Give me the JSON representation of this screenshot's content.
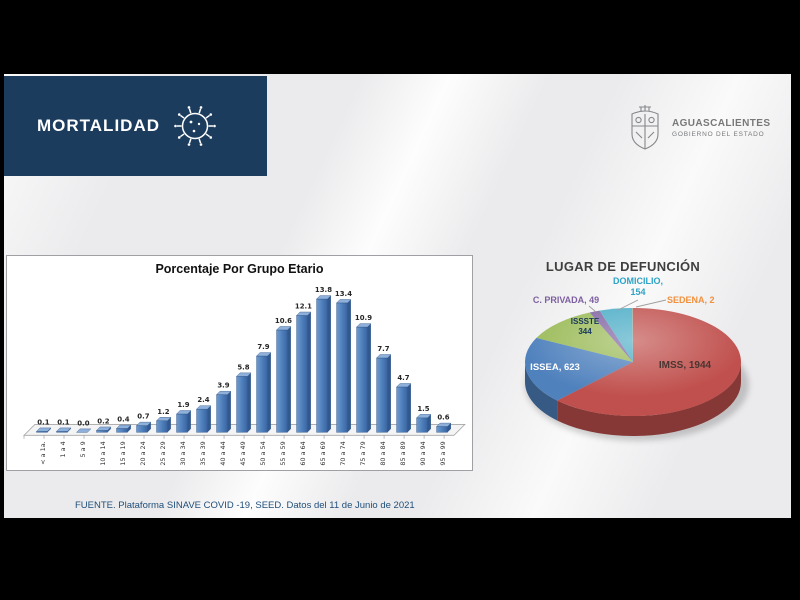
{
  "window": {
    "frame_color": "#000000",
    "slide_background": "#ebebed"
  },
  "header": {
    "title": "MORTALIDAD",
    "band_color": "#1c3c5e"
  },
  "logo": {
    "name": "AGUASCALIENTES",
    "subtitle": "GOBIERNO DEL ESTADO"
  },
  "footer": {
    "source": "FUENTE. Plataforma SINAVE COVID -19, SEED. Datos del 11 de Junio de 2021"
  },
  "chart_data": [
    {
      "type": "bar",
      "title": "Porcentaje Por Grupo Etario",
      "categories": [
        "< a 1a.",
        "1 a 4",
        "5 a 9",
        "10 a 14",
        "15 a 19",
        "20 a 24",
        "25 a 29",
        "30 a 34",
        "35 a 39",
        "40 a 44",
        "45 a 49",
        "50 a 54",
        "55 a 59",
        "60 a 64",
        "65 a 69",
        "70 a 74",
        "75 a 79",
        "80 a 84",
        "85 a 89",
        "90 a 94",
        "95 a 99"
      ],
      "values": [
        0.1,
        0.1,
        0.0,
        0.2,
        0.4,
        0.7,
        1.2,
        1.9,
        2.4,
        3.9,
        5.8,
        7.9,
        10.6,
        12.1,
        13.8,
        13.4,
        10.9,
        7.7,
        4.7,
        1.5,
        0.6
      ],
      "xlabel": "",
      "ylabel": "",
      "ylim": [
        0,
        14
      ],
      "bar_color": "#4f81bd",
      "grid": false,
      "legend": false,
      "value_labels_decimals": 1
    },
    {
      "type": "pie",
      "title": "LUGAR DE DEFUNCIÓN",
      "legend": false,
      "style": "3d",
      "slices": [
        {
          "name": "IMSS",
          "value": 1944,
          "color": "#c0504d",
          "label": "IMSS, 1944",
          "label_color": "#4a3531"
        },
        {
          "name": "ISSEA",
          "value": 623,
          "color": "#4f81bd",
          "label": "ISSEA, 623",
          "label_color": "#ffffff"
        },
        {
          "name": "ISSSTE",
          "value": 344,
          "color": "#9bbb59",
          "label_line1": "ISSSTE",
          "label_line2": "344",
          "label_color": "#17365d"
        },
        {
          "name": "C. PRIVADA",
          "value": 49,
          "color": "#8064a2",
          "label": "C. PRIVADA, 49",
          "label_color": "#7d60a0"
        },
        {
          "name": "DOMICILIO",
          "value": 154,
          "color": "#4bacc6",
          "label_line1": "DOMICILIO,",
          "label_line2": "154",
          "label_color": "#2fa3c6"
        },
        {
          "name": "SEDENA",
          "value": 2,
          "color": "#f79646",
          "label": "SEDENA, 2",
          "label_color": "#f0913e"
        }
      ]
    }
  ]
}
